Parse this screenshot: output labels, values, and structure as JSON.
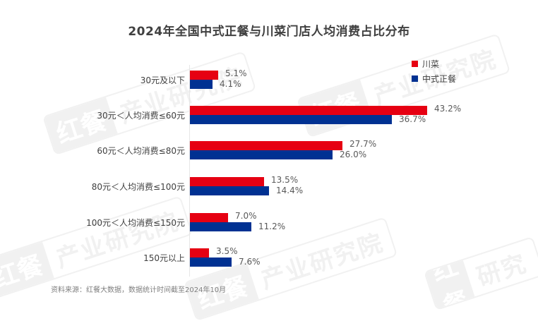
{
  "title": "2024年全国中式正餐与川菜门店人均消费占比分布",
  "legend": [
    {
      "label": "川菜",
      "color": "#E60012"
    },
    {
      "label": "中式正餐",
      "color": "#003192"
    }
  ],
  "watermark": {
    "logo": "红餐",
    "text": "产业研究院"
  },
  "source": "资料来源：红餐大数据，数据统计时间截至2024年10月",
  "categories": [
    {
      "label": "30元及以下",
      "sichuan": "5.1%",
      "chinese": "4.1%"
    },
    {
      "label": "30元＜人均消费≤60元",
      "sichuan": "43.2%",
      "chinese": "36.7%"
    },
    {
      "label": "60元＜人均消费≤80元",
      "sichuan": "27.7%",
      "chinese": "26.0%"
    },
    {
      "label": "80元＜人均消费≤100元",
      "sichuan": "13.5%",
      "chinese": "14.4%"
    },
    {
      "label": "100元＜人均消费≤150元",
      "sichuan": "7.0%",
      "chinese": "11.2%"
    },
    {
      "label": "150元以上",
      "sichuan": "3.5%",
      "chinese": "7.6%"
    }
  ],
  "chart_data": {
    "type": "bar",
    "orientation": "horizontal",
    "title": "2024年全国中式正餐与川菜门店人均消费占比分布",
    "categories": [
      "30元及以下",
      "30元＜人均消费≤60元",
      "60元＜人均消费≤80元",
      "80元＜人均消费≤100元",
      "100元＜人均消费≤150元",
      "150元以上"
    ],
    "series": [
      {
        "name": "川菜",
        "color": "#E60012",
        "values": [
          5.1,
          43.2,
          27.7,
          13.5,
          7.0,
          3.5
        ]
      },
      {
        "name": "中式正餐",
        "color": "#003192",
        "values": [
          4.1,
          36.7,
          26.0,
          14.4,
          11.2,
          7.6
        ]
      }
    ],
    "xlabel": "",
    "ylabel": "",
    "unit": "%",
    "grid": false,
    "legend_position": "top-right",
    "data_labels": true,
    "source": "资料来源：红餐大数据，数据统计时间截至2024年10月"
  }
}
